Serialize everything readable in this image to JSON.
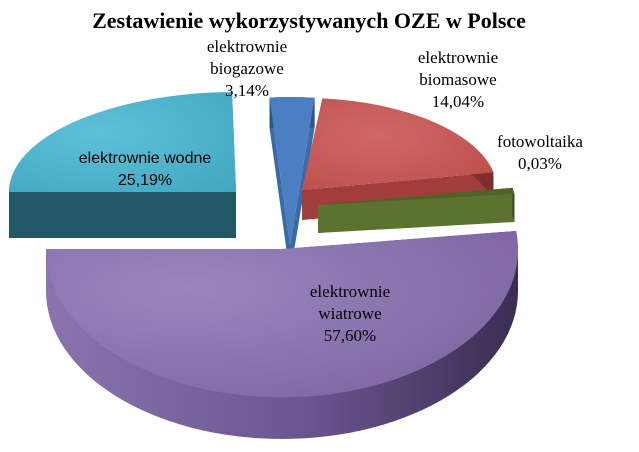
{
  "chart_data": {
    "type": "pie",
    "title": "Zestawienie wykorzystywanych OZE w Polsce",
    "three_d": true,
    "exploded": true,
    "legend": "none",
    "slices": [
      {
        "name": "elektrownie biogazowe",
        "value": 3.14,
        "label_lines": [
          "elektrownie",
          "biogazowe",
          "3,14%"
        ],
        "color": "#4a7fc1"
      },
      {
        "name": "elektrownie biomasowe",
        "value": 14.04,
        "label_lines": [
          "elektrownie",
          "biomasowe",
          "14,04%"
        ],
        "color": "#c0504d"
      },
      {
        "name": "fotowoltaika",
        "value": 0.03,
        "label_lines": [
          "fotowoltaika",
          "0,03%"
        ],
        "color": "#9bbb59"
      },
      {
        "name": "elektrownie wiatrowe",
        "value": 57.6,
        "label_lines": [
          "elektrownie",
          "wiatrowe",
          "57,60%"
        ],
        "color": "#8064a2"
      },
      {
        "name": "elektrownie wodne",
        "value": 25.19,
        "label_lines": [
          "elektrownie wodne",
          "25,19%"
        ],
        "color": "#4bacc6"
      }
    ]
  }
}
